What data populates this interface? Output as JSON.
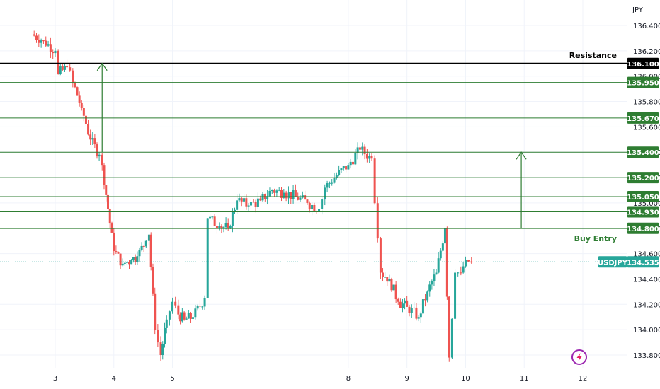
{
  "symbol": "USDJPY",
  "currency": "JPY",
  "colors": {
    "up": "#26a69a",
    "down": "#ef5350",
    "level": "#2e7d32",
    "resistance": "#000000",
    "current": "#26a69a",
    "logo": "#9c27b0"
  },
  "chart_data": {
    "type": "candlestick",
    "y_axis": {
      "unit": "JPY",
      "ylim": [
        133.72,
        136.44
      ],
      "ticks": [
        "136.400",
        "136.200",
        "136.000",
        "135.800",
        "135.600",
        "135.400",
        "135.200",
        "135.000",
        "134.800",
        "134.600",
        "134.400",
        "134.200",
        "134.000",
        "133.800"
      ]
    },
    "x_axis": {
      "ticks": [
        "3",
        "4",
        "5",
        "8",
        "9",
        "10",
        "11",
        "12"
      ],
      "tick_positions": [
        3,
        4,
        5,
        8,
        9,
        10,
        11,
        12
      ]
    },
    "close_series": [
      {
        "x": 2.6,
        "close": 136.33
      },
      {
        "x": 2.8,
        "close": 136.28
      },
      {
        "x": 3.0,
        "close": 136.2
      },
      {
        "x": 3.05,
        "close": 136.02
      },
      {
        "x": 3.2,
        "close": 136.07
      },
      {
        "x": 3.3,
        "close": 135.95
      },
      {
        "x": 3.45,
        "close": 135.75
      },
      {
        "x": 3.6,
        "close": 135.5
      },
      {
        "x": 3.75,
        "close": 135.38
      },
      {
        "x": 3.8,
        "close": 135.3
      },
      {
        "x": 3.9,
        "close": 134.95
      },
      {
        "x": 4.0,
        "close": 134.62
      },
      {
        "x": 4.15,
        "close": 134.52
      },
      {
        "x": 4.3,
        "close": 134.55
      },
      {
        "x": 4.4,
        "close": 134.58
      },
      {
        "x": 4.55,
        "close": 134.7
      },
      {
        "x": 4.6,
        "close": 134.75
      },
      {
        "x": 4.7,
        "close": 134.0
      },
      {
        "x": 4.8,
        "close": 133.8
      },
      {
        "x": 4.9,
        "close": 134.08
      },
      {
        "x": 5.0,
        "close": 134.22
      },
      {
        "x": 5.1,
        "close": 134.12
      },
      {
        "x": 5.2,
        "close": 134.08
      },
      {
        "x": 5.35,
        "close": 134.1
      },
      {
        "x": 5.55,
        "close": 134.25
      },
      {
        "x": 5.6,
        "close": 134.88
      },
      {
        "x": 5.8,
        "close": 134.82
      },
      {
        "x": 5.95,
        "close": 134.8
      },
      {
        "x": 6.1,
        "close": 135.02
      },
      {
        "x": 6.3,
        "close": 134.98
      },
      {
        "x": 6.5,
        "close": 135.02
      },
      {
        "x": 6.7,
        "close": 135.1
      },
      {
        "x": 6.9,
        "close": 135.08
      },
      {
        "x": 7.1,
        "close": 135.05
      },
      {
        "x": 7.3,
        "close": 135.0
      },
      {
        "x": 7.5,
        "close": 134.95
      },
      {
        "x": 7.6,
        "close": 135.12
      },
      {
        "x": 7.8,
        "close": 135.22
      },
      {
        "x": 8.0,
        "close": 135.3
      },
      {
        "x": 8.2,
        "close": 135.42
      },
      {
        "x": 8.4,
        "close": 135.35
      },
      {
        "x": 8.5,
        "close": 134.72
      },
      {
        "x": 8.55,
        "close": 134.45
      },
      {
        "x": 8.7,
        "close": 134.4
      },
      {
        "x": 8.85,
        "close": 134.22
      },
      {
        "x": 9.0,
        "close": 134.18
      },
      {
        "x": 9.2,
        "close": 134.1
      },
      {
        "x": 9.35,
        "close": 134.3
      },
      {
        "x": 9.5,
        "close": 134.45
      },
      {
        "x": 9.65,
        "close": 134.8
      },
      {
        "x": 9.72,
        "close": 133.78
      },
      {
        "x": 9.82,
        "close": 134.45
      },
      {
        "x": 9.92,
        "close": 134.45
      },
      {
        "x": 10.0,
        "close": 134.55
      },
      {
        "x": 10.1,
        "close": 134.53
      }
    ],
    "horizontal_levels": [
      {
        "price": 136.1,
        "label": "136.100",
        "style": "resistance",
        "annotation": "Resistance"
      },
      {
        "price": 135.95,
        "label": "135.950",
        "style": "level"
      },
      {
        "price": 135.67,
        "label": "135.670",
        "style": "level"
      },
      {
        "price": 135.4,
        "label": "135.400",
        "style": "level"
      },
      {
        "price": 135.2,
        "label": "135.200",
        "style": "level"
      },
      {
        "price": 135.05,
        "label": "135.050",
        "style": "level"
      },
      {
        "price": 134.93,
        "label": "134.930",
        "style": "level"
      },
      {
        "price": 134.8,
        "label": "134.800",
        "style": "entry",
        "annotation": "Buy Entry"
      }
    ],
    "current_price": {
      "price": 134.535,
      "label": "134.535",
      "symbol": "USDJPY"
    },
    "arrows": [
      {
        "x": 3.8,
        "from": 135.4,
        "to": 136.1
      },
      {
        "x": 10.95,
        "from": 134.8,
        "to": 135.4
      }
    ]
  }
}
